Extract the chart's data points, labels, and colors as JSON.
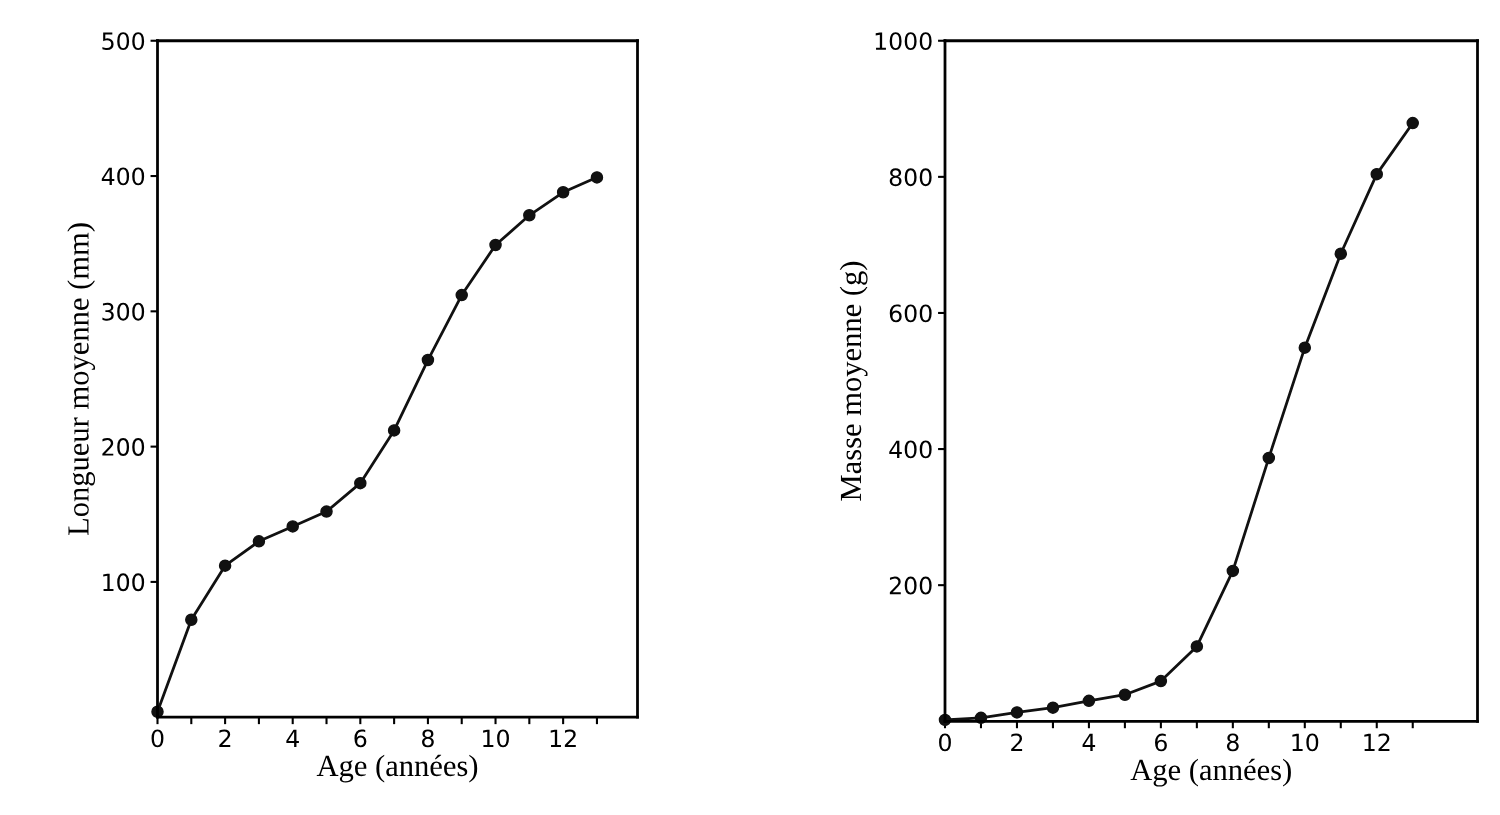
{
  "chart_data": [
    {
      "type": "line",
      "xlabel": "Age (années)",
      "ylabel": "Longueur moyenne (mm)",
      "x": [
        0,
        1,
        2,
        3,
        4,
        5,
        6,
        7,
        8,
        9,
        10,
        11,
        12,
        13
      ],
      "series": [
        {
          "color": "#111111",
          "values": [
            4,
            72,
            112,
            130,
            141,
            152,
            173,
            212,
            264,
            312,
            349,
            371,
            388,
            399
          ]
        }
      ],
      "xlim": [
        0,
        14.2
      ],
      "ylim": [
        0,
        500
      ],
      "xticks": [
        0,
        {
          "value": 1,
          "label": null
        },
        2,
        {
          "value": 3,
          "label": null
        },
        4,
        {
          "value": 5,
          "label": null
        },
        6,
        {
          "value": 7,
          "label": null
        },
        8,
        {
          "value": 9,
          "label": null
        },
        10,
        {
          "value": 11,
          "label": null
        },
        12,
        {
          "value": 13,
          "label": null
        }
      ],
      "yticks": [
        100,
        200,
        300,
        400,
        500
      ],
      "marker": "circle",
      "line_style": "solid",
      "grid": false,
      "legend": false
    },
    {
      "type": "line",
      "xlabel": "Age (années)",
      "ylabel": "Masse moyenne (g)",
      "x": [
        0,
        1,
        2,
        3,
        4,
        5,
        6,
        7,
        8,
        9,
        10,
        11,
        12,
        13
      ],
      "series": [
        {
          "color": "#111111",
          "values": [
            2,
            5,
            13,
            20,
            30,
            39,
            59,
            110,
            221,
            387,
            549,
            687,
            804,
            879
          ]
        }
      ],
      "xlim": [
        0,
        14.8
      ],
      "ylim": [
        0,
        1000
      ],
      "xticks": [
        0,
        {
          "value": 1,
          "label": null
        },
        2,
        {
          "value": 3,
          "label": null
        },
        4,
        {
          "value": 5,
          "label": null
        },
        6,
        {
          "value": 7,
          "label": null
        },
        8,
        {
          "value": 9,
          "label": null
        },
        10,
        {
          "value": 11,
          "label": null
        },
        12,
        {
          "value": 13,
          "label": null
        }
      ],
      "yticks": [
        200,
        400,
        600,
        800,
        1000
      ],
      "marker": "circle",
      "line_style": "solid",
      "grid": false,
      "legend": false
    }
  ]
}
